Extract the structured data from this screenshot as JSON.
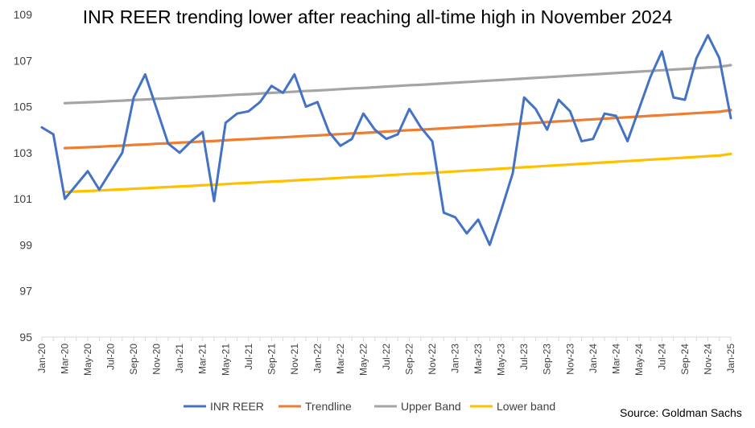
{
  "chart_data": {
    "type": "line",
    "title": "INR REER trending lower after reaching all-time high in November 2024",
    "source": "Source: Goldman Sachs",
    "ylim": [
      95,
      109
    ],
    "yticks": [
      95,
      97,
      99,
      101,
      103,
      105,
      107,
      109
    ],
    "grid": false,
    "legend_position": "bottom",
    "x": [
      "Jan-20",
      "Feb-20",
      "Mar-20",
      "Apr-20",
      "May-20",
      "Jun-20",
      "Jul-20",
      "Aug-20",
      "Sep-20",
      "Oct-20",
      "Nov-20",
      "Dec-20",
      "Jan-21",
      "Feb-21",
      "Mar-21",
      "Apr-21",
      "May-21",
      "Jun-21",
      "Jul-21",
      "Aug-21",
      "Sep-21",
      "Oct-21",
      "Nov-21",
      "Dec-21",
      "Jan-22",
      "Feb-22",
      "Mar-22",
      "Apr-22",
      "May-22",
      "Jun-22",
      "Jul-22",
      "Aug-22",
      "Sep-22",
      "Oct-22",
      "Nov-22",
      "Dec-22",
      "Jan-23",
      "Feb-23",
      "Mar-23",
      "Apr-23",
      "May-23",
      "Jun-23",
      "Jul-23",
      "Aug-23",
      "Sep-23",
      "Oct-23",
      "Nov-23",
      "Dec-23",
      "Jan-24",
      "Feb-24",
      "Mar-24",
      "Apr-24",
      "May-24",
      "Jun-24",
      "Jul-24",
      "Aug-24",
      "Sep-24",
      "Oct-24",
      "Nov-24",
      "Dec-24",
      "Jan-25"
    ],
    "xtick_labels": [
      "Jan-20",
      "Mar-20",
      "May-20",
      "Jul-20",
      "Sep-20",
      "Nov-20",
      "Jan-21",
      "Mar-21",
      "May-21",
      "Jul-21",
      "Sep-21",
      "Nov-21",
      "Jan-22",
      "Mar-22",
      "May-22",
      "Jul-22",
      "Sep-22",
      "Nov-22",
      "Jan-23",
      "Mar-23",
      "May-23",
      "Jul-23",
      "Sep-23",
      "Nov-23",
      "Jan-24",
      "Mar-24",
      "May-24",
      "Jul-24",
      "Sep-24",
      "Nov-24",
      "Jan-25"
    ],
    "series": [
      {
        "name": "INR REER",
        "color": "#4472C4",
        "values": [
          104.1,
          103.8,
          101.0,
          101.6,
          102.2,
          101.4,
          102.2,
          103.0,
          105.4,
          106.4,
          104.9,
          103.4,
          103.0,
          103.5,
          103.9,
          100.9,
          104.3,
          104.7,
          104.8,
          105.2,
          105.9,
          105.6,
          106.4,
          105.0,
          105.2,
          103.9,
          103.3,
          103.6,
          104.7,
          104.0,
          103.6,
          103.8,
          104.9,
          104.1,
          103.5,
          100.4,
          100.2,
          99.5,
          100.1,
          99.0,
          100.5,
          102.1,
          105.4,
          104.9,
          104.0,
          105.3,
          104.8,
          103.5,
          103.6,
          104.7,
          104.6,
          103.5,
          104.9,
          106.3,
          107.4,
          105.4,
          105.3,
          107.1,
          108.1,
          107.1,
          104.5
        ]
      },
      {
        "name": "Trendline",
        "color": "#ED7D31",
        "values": [
          null,
          null,
          103.2,
          103.22,
          103.24,
          103.26,
          103.29,
          103.31,
          103.34,
          103.36,
          103.39,
          103.41,
          103.44,
          103.46,
          103.49,
          103.51,
          103.54,
          103.57,
          103.59,
          103.62,
          103.65,
          103.67,
          103.7,
          103.73,
          103.75,
          103.78,
          103.81,
          103.84,
          103.86,
          103.89,
          103.92,
          103.95,
          103.98,
          104.0,
          104.03,
          104.06,
          104.09,
          104.12,
          104.15,
          104.18,
          104.21,
          104.24,
          104.27,
          104.3,
          104.33,
          104.36,
          104.39,
          104.42,
          104.45,
          104.48,
          104.51,
          104.54,
          104.57,
          104.6,
          104.63,
          104.66,
          104.69,
          104.72,
          104.75,
          104.78,
          104.85
        ]
      },
      {
        "name": "Upper Band",
        "color": "#A5A5A5",
        "values": [
          null,
          null,
          105.15,
          105.17,
          105.19,
          105.21,
          105.24,
          105.26,
          105.29,
          105.31,
          105.34,
          105.36,
          105.39,
          105.41,
          105.44,
          105.46,
          105.49,
          105.52,
          105.54,
          105.57,
          105.6,
          105.62,
          105.65,
          105.68,
          105.7,
          105.73,
          105.76,
          105.79,
          105.81,
          105.84,
          105.87,
          105.9,
          105.93,
          105.95,
          105.98,
          106.01,
          106.04,
          106.07,
          106.1,
          106.13,
          106.16,
          106.19,
          106.22,
          106.25,
          106.28,
          106.31,
          106.34,
          106.37,
          106.4,
          106.43,
          106.46,
          106.49,
          106.52,
          106.55,
          106.58,
          106.61,
          106.64,
          106.67,
          106.7,
          106.73,
          106.8
        ]
      },
      {
        "name": "Lower band",
        "color": "#FFC000",
        "values": [
          null,
          null,
          101.3,
          101.32,
          101.34,
          101.36,
          101.39,
          101.41,
          101.44,
          101.46,
          101.49,
          101.51,
          101.54,
          101.56,
          101.59,
          101.61,
          101.64,
          101.67,
          101.69,
          101.72,
          101.75,
          101.77,
          101.8,
          101.83,
          101.85,
          101.88,
          101.91,
          101.94,
          101.96,
          101.99,
          102.02,
          102.05,
          102.08,
          102.1,
          102.13,
          102.16,
          102.19,
          102.22,
          102.25,
          102.28,
          102.31,
          102.34,
          102.37,
          102.4,
          102.43,
          102.46,
          102.49,
          102.52,
          102.55,
          102.58,
          102.61,
          102.64,
          102.67,
          102.7,
          102.73,
          102.76,
          102.79,
          102.82,
          102.85,
          102.88,
          102.95
        ]
      }
    ]
  }
}
